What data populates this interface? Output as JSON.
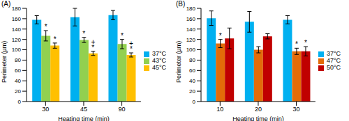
{
  "chart_data": [
    {
      "type": "bar",
      "title": "(A)",
      "x_label": "Heating time (min)",
      "y_label": "Perimeter (µm)",
      "categories": [
        "30",
        "45",
        "90"
      ],
      "ylim": [
        0,
        180
      ],
      "yticks": [
        0,
        20,
        40,
        60,
        80,
        100,
        120,
        140,
        160,
        180
      ],
      "legend": "right",
      "series": [
        {
          "name": "37°C",
          "color": "#00b0f0",
          "values": [
            158,
            163,
            167
          ],
          "errors": [
            8,
            17,
            9
          ],
          "annotations": [
            [],
            [],
            []
          ]
        },
        {
          "name": "43°C",
          "color": "#92d050",
          "values": [
            127,
            119,
            111
          ],
          "errors": [
            10,
            5,
            9
          ],
          "annotations": [
            [
              "*"
            ],
            [
              "*"
            ],
            [
              "*"
            ]
          ]
        },
        {
          "name": "45°C",
          "color": "#ffc000",
          "values": [
            108,
            93,
            90
          ],
          "errors": [
            5,
            4,
            4
          ],
          "annotations": [
            [
              "*"
            ],
            [
              "+",
              "*"
            ],
            [
              "+",
              "*"
            ]
          ]
        }
      ]
    },
    {
      "type": "bar",
      "title": "(B)",
      "x_label": "Heating time (min)",
      "y_label": "Perimeter (µm)",
      "categories": [
        "10",
        "20",
        "30"
      ],
      "ylim": [
        0,
        180
      ],
      "yticks": [
        0,
        20,
        40,
        60,
        80,
        100,
        120,
        140,
        160,
        180
      ],
      "legend": "right",
      "series": [
        {
          "name": "37°C",
          "color": "#00b0f0",
          "values": [
            161,
            154,
            158
          ],
          "errors": [
            14,
            20,
            8
          ],
          "annotations": [
            [],
            [],
            []
          ]
        },
        {
          "name": "47°C",
          "color": "#e36c09",
          "values": [
            112,
            100,
            97
          ],
          "errors": [
            8,
            6,
            6
          ],
          "annotations": [
            [
              "*"
            ],
            [],
            [
              "*"
            ]
          ]
        },
        {
          "name": "50°C",
          "color": "#c00000",
          "values": [
            122,
            126,
            97
          ],
          "errors": [
            20,
            5,
            9
          ],
          "annotations": [
            [],
            [],
            [
              "*"
            ]
          ]
        }
      ]
    }
  ]
}
